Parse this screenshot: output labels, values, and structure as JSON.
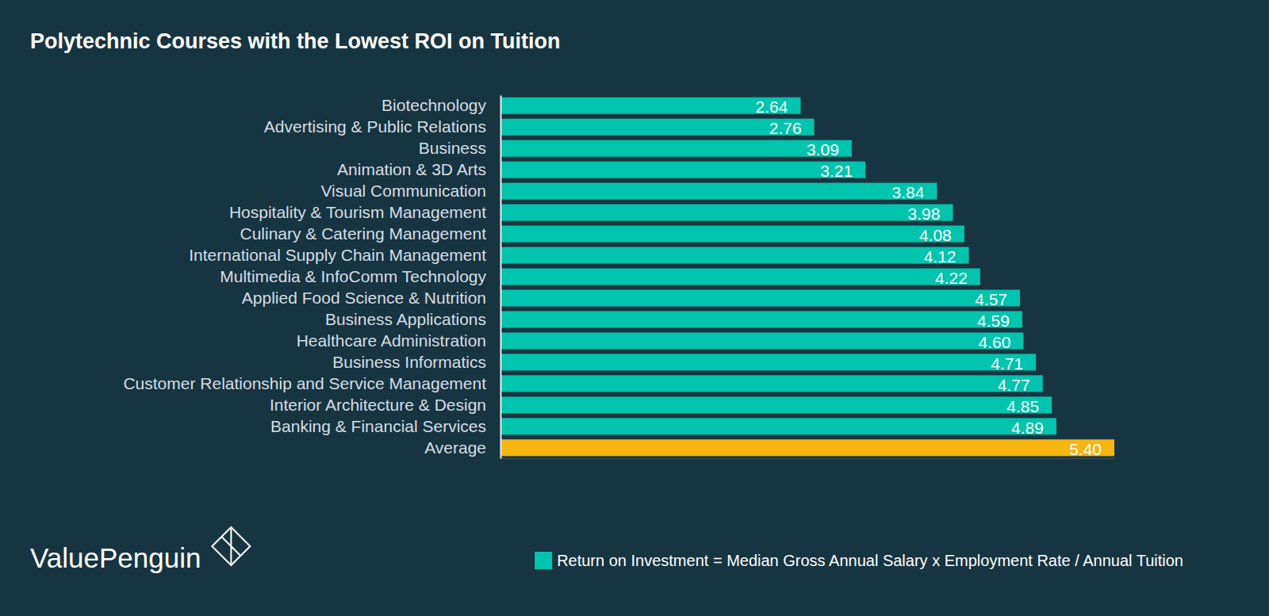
{
  "chart_data": {
    "type": "bar",
    "orientation": "horizontal",
    "title": "Polytechnic Courses with the Lowest ROI on Tuition",
    "categories": [
      "Biotechnology",
      "Advertising & Public Relations",
      "Business",
      "Animation & 3D Arts",
      "Visual Communication",
      "Hospitality & Tourism Management",
      "Culinary & Catering Management",
      "International Supply Chain Management",
      "Multimedia & InfoComm Technology",
      "Applied Food Science & Nutrition",
      "Business Applications",
      "Healthcare Administration",
      "Business Informatics",
      "Customer Relationship and Service Management",
      "Interior Architecture & Design",
      "Banking & Financial Services",
      "Average"
    ],
    "series": [
      {
        "name": "Return on Investment = Median Gross Annual Salary x Employment Rate / Annual Tuition",
        "color": "#00c4ad",
        "values": [
          2.64,
          2.76,
          3.09,
          3.21,
          3.84,
          3.98,
          4.08,
          4.12,
          4.22,
          4.57,
          4.59,
          4.6,
          4.71,
          4.77,
          4.85,
          4.89,
          5.4
        ],
        "value_labels": [
          "2.64",
          "2.76",
          "3.09",
          "3.21",
          "3.84",
          "3.98",
          "4.08",
          "4.12",
          "4.22",
          "4.57",
          "4.59",
          "4.60",
          "4.71",
          "4.77",
          "4.85",
          "4.89",
          "5.40"
        ],
        "colors": [
          "#00c4ad",
          "#00c4ad",
          "#00c4ad",
          "#00c4ad",
          "#00c4ad",
          "#00c4ad",
          "#00c4ad",
          "#00c4ad",
          "#00c4ad",
          "#00c4ad",
          "#00c4ad",
          "#00c4ad",
          "#00c4ad",
          "#00c4ad",
          "#00c4ad",
          "#00c4ad",
          "#f6b50f"
        ]
      }
    ],
    "xlim": [
      0,
      5.4
    ],
    "xticks": [],
    "tick_labels": "y",
    "data_labels": true,
    "grid": false,
    "legend": "bottom-right",
    "annotations": [
      "ValuePenguin"
    ]
  }
}
